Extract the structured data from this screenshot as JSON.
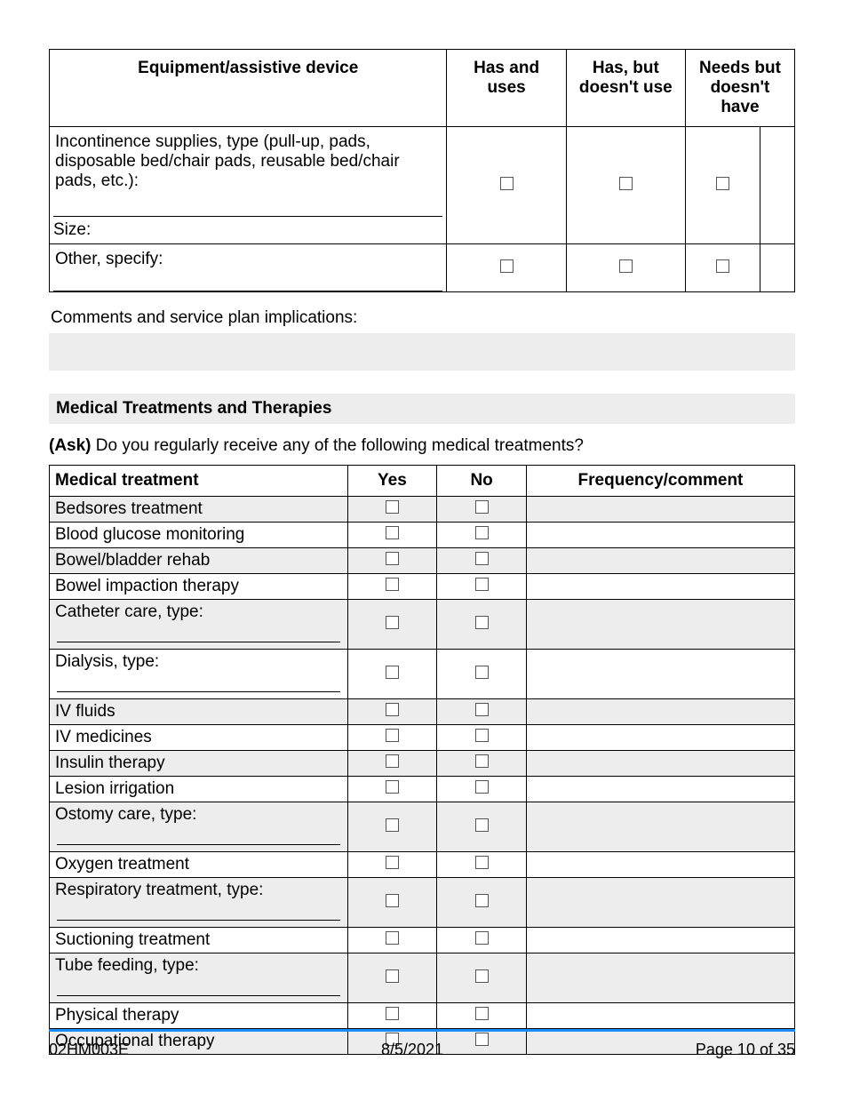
{
  "equip_table": {
    "headers": {
      "device": "Equipment/assistive device",
      "has_uses": "Has and uses",
      "has_not_use": "Has, but doesn't use",
      "needs": "Needs but doesn't have"
    },
    "rows": [
      {
        "label": "Incontinence supplies, type (pull-up, pads, disposable bed/chair pads, reusable bed/chair pads, etc.):",
        "subline": "Size:"
      },
      {
        "label": "Other, specify:",
        "subline": ""
      }
    ]
  },
  "comments_label": "Comments and service plan implications:",
  "section_header": "Medical Treatments and Therapies",
  "ask_prefix": "(Ask)",
  "ask_text": " Do you regularly receive any of the following medical treatments?",
  "med_table": {
    "headers": {
      "treatment": "Medical treatment",
      "yes": "Yes",
      "no": "No",
      "freq": "Frequency/comment"
    },
    "rows": [
      {
        "label": "Bedsores treatment",
        "shaded": true,
        "tall": false
      },
      {
        "label": "Blood glucose monitoring",
        "shaded": false,
        "tall": false
      },
      {
        "label": "Bowel/bladder rehab",
        "shaded": true,
        "tall": false
      },
      {
        "label": "Bowel impaction therapy",
        "shaded": false,
        "tall": false
      },
      {
        "label": "Catheter care, type:",
        "shaded": true,
        "tall": true
      },
      {
        "label": "Dialysis, type:",
        "shaded": false,
        "tall": true
      },
      {
        "label": "IV fluids",
        "shaded": true,
        "tall": false
      },
      {
        "label": "IV medicines",
        "shaded": false,
        "tall": false
      },
      {
        "label": "Insulin therapy",
        "shaded": true,
        "tall": false
      },
      {
        "label": "Lesion irrigation",
        "shaded": false,
        "tall": false
      },
      {
        "label": "Ostomy care, type:",
        "shaded": true,
        "tall": true
      },
      {
        "label": "Oxygen treatment",
        "shaded": false,
        "tall": false
      },
      {
        "label": "Respiratory treatment, type:",
        "shaded": true,
        "tall": true
      },
      {
        "label": "Suctioning treatment",
        "shaded": false,
        "tall": false
      },
      {
        "label": "Tube feeding, type:",
        "shaded": true,
        "tall": true
      },
      {
        "label": "Physical therapy",
        "shaded": false,
        "tall": false
      },
      {
        "label": "Occupational therapy",
        "shaded": true,
        "tall": false
      }
    ]
  },
  "footer": {
    "form_id": "02HM003E",
    "date": "8/5/2021",
    "page": "Page 10 of 35"
  },
  "colors": {
    "shade": "#ededed",
    "accent": "#1a8cff"
  }
}
